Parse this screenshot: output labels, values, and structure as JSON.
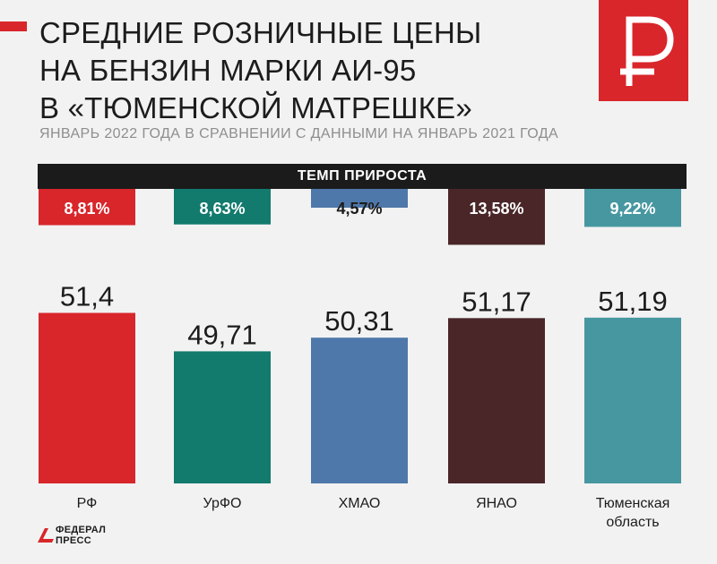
{
  "title_lines": [
    "СРЕДНИЕ РОЗНИЧНЫЕ ЦЕНЫ",
    "НА БЕНЗИН МАРКИ АИ-95",
    "В «ТЮМЕНСКОЙ МАТРЕШКЕ»"
  ],
  "subtitle": "ЯНВАРЬ 2022 ГОДА В СРАВНЕНИИ С ДАННЫМИ НА ЯНВАРЬ 2021 ГОДА",
  "growth_header": "ТЕМП ПРИРОСТА",
  "logo": {
    "line1": "ФЕДЕРАЛ",
    "line2": "ПРЕСС",
    "icon": "ruble-sign-icon"
  },
  "colors": {
    "red": "#d8262b",
    "green": "#137a6e",
    "blue": "#4f78aa",
    "maroon": "#4a2628",
    "teal": "#4697a0"
  },
  "chart_data": {
    "type": "bar",
    "title": "СРЕДНИЕ РОЗНИЧНЫЕ ЦЕНЫ НА БЕНЗИН МАРКИ АИ-95 В «ТЮМЕНСКОЙ МАТРЕШКЕ»",
    "subtitle": "ЯНВАРЬ 2022 ГОДА В СРАВНЕНИИ С ДАННЫМИ НА ЯНВАРЬ 2021 ГОДА",
    "categories": [
      "РФ",
      "УрФО",
      "ХМАО",
      "ЯНАО",
      "Тюменская область"
    ],
    "category_lines": [
      [
        "РФ"
      ],
      [
        "УрФО"
      ],
      [
        "ХМАО"
      ],
      [
        "ЯНАО"
      ],
      [
        "Тюменская",
        "область"
      ]
    ],
    "values": [
      51.4,
      49.71,
      50.31,
      51.17,
      51.19
    ],
    "value_labels": [
      "51,4",
      "49,71",
      "50,31",
      "51,17",
      "51,19"
    ],
    "growth": {
      "label": "ТЕМП ПРИРОСТА",
      "values": [
        8.81,
        8.63,
        4.57,
        13.58,
        9.22
      ],
      "labels": [
        "8,81%",
        "8,63%",
        "4,57%",
        "13,58%",
        "9,22%"
      ]
    },
    "bar_colors": [
      "#d8262b",
      "#137a6e",
      "#4f78aa",
      "#4a2628",
      "#4697a0"
    ],
    "grid": false,
    "legend": "none"
  }
}
